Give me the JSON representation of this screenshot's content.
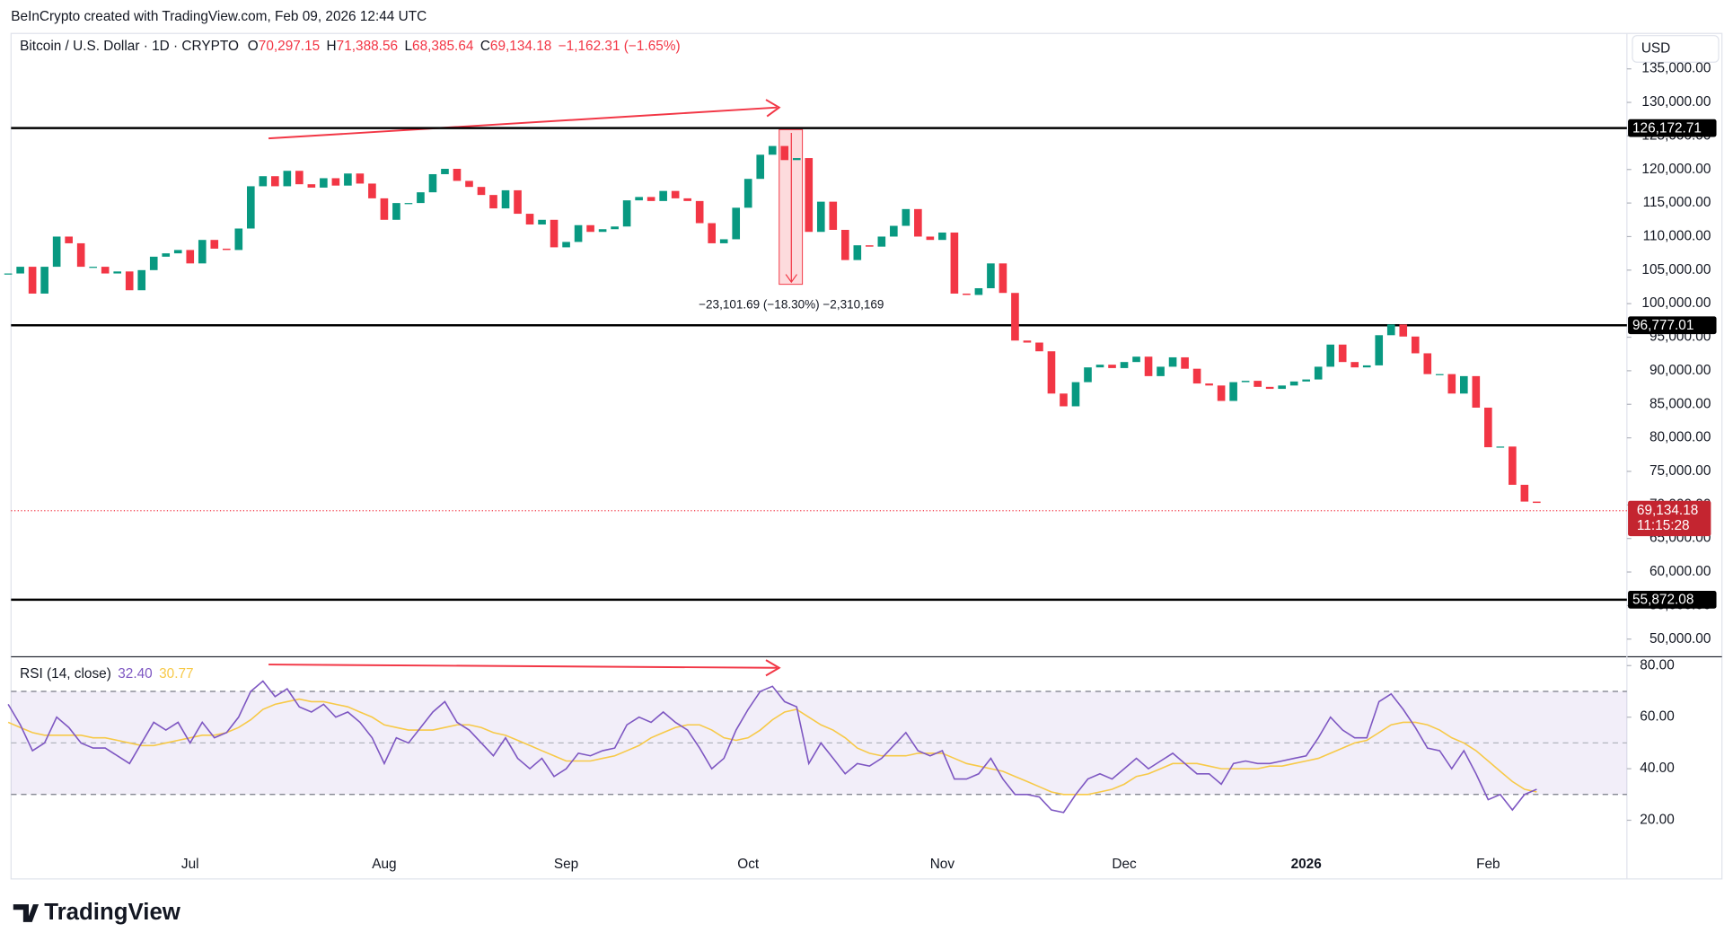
{
  "header": {
    "attribution": "BeInCrypto created with TradingView.com, Feb 09, 2026 12:44 UTC"
  },
  "footer": {
    "brand": "TradingView"
  },
  "chart_data": [
    {
      "type": "candlestick",
      "title": "Bitcoin / U.S. Dollar · 1D · CRYPTO",
      "ohlc_legend": [
        {
          "key": "O",
          "text": "70,297.15"
        },
        {
          "key": "H",
          "text": "71,388.56"
        },
        {
          "key": "L",
          "text": "68,385.64"
        },
        {
          "key": "C",
          "text": "69,134.18"
        }
      ],
      "change": "−1,162.31 (−1.65%)",
      "currency": "USD",
      "up_color": "#089981",
      "down_color": "#f23645",
      "categories": [
        null,
        null,
        null,
        null,
        null,
        null,
        null,
        null,
        null,
        null,
        null,
        null,
        null,
        null,
        null,
        "Jul",
        null,
        null,
        null,
        null,
        null,
        null,
        null,
        null,
        null,
        null,
        null,
        null,
        null,
        null,
        null,
        "Aug",
        null,
        null,
        null,
        null,
        null,
        null,
        null,
        null,
        null,
        null,
        null,
        null,
        null,
        null,
        "Sep",
        null,
        null,
        null,
        null,
        null,
        null,
        null,
        null,
        null,
        null,
        null,
        null,
        null,
        null,
        "Oct",
        null,
        null,
        null,
        null,
        null,
        null,
        null,
        null,
        null,
        null,
        null,
        null,
        null,
        null,
        null,
        "Nov",
        null,
        null,
        null,
        null,
        null,
        null,
        null,
        null,
        null,
        null,
        null,
        null,
        null,
        null,
        "Dec",
        null,
        null,
        null,
        null,
        null,
        null,
        null,
        null,
        null,
        null,
        null,
        null,
        null,
        null,
        "2026",
        null,
        null,
        null,
        null,
        null,
        null,
        null,
        null,
        null,
        null,
        null,
        null,
        null,
        null,
        "Feb",
        null,
        null,
        null,
        null
      ],
      "values": [
        104500,
        105500,
        101500,
        105500,
        110000,
        109000,
        105500,
        105500,
        104500,
        104800,
        102000,
        105000,
        107000,
        107500,
        108000,
        106000,
        109500,
        108200,
        108000,
        111200,
        117500,
        119000,
        117500,
        119800,
        117800,
        117300,
        118700,
        117600,
        119400,
        117900,
        115700,
        112500,
        115000,
        115000,
        116600,
        119300,
        120100,
        118300,
        117400,
        116200,
        114200,
        116900,
        113400,
        111800,
        112500,
        108400,
        109200,
        111700,
        110700,
        111100,
        111500,
        115400,
        115900,
        115300,
        116800,
        115700,
        115300,
        112000,
        109000,
        109600,
        114300,
        118600,
        122200,
        123500,
        121400,
        121700,
        110700,
        115200,
        111000,
        106500,
        108700,
        108500,
        110000,
        111600,
        114100,
        110000,
        109500,
        110600,
        101500,
        101300,
        102300,
        106000,
        101600,
        94500,
        94200,
        92900,
        86600,
        84700,
        88300,
        90500,
        90900,
        90400,
        91300,
        92100,
        89200,
        90600,
        92000,
        90300,
        88100,
        87800,
        85500,
        88300,
        88500,
        87600,
        87300,
        87800,
        88400,
        88700,
        90600,
        93900,
        91300,
        90500,
        90800,
        95300,
        96900,
        95100,
        92600,
        89500,
        89500,
        86600,
        89200,
        84500,
        78600,
        78700,
        73000,
        70500,
        70300
      ],
      "ylim": [
        47530,
        140280
      ],
      "yticks": [
        {
          "value": 50000,
          "label": "50,000.00"
        },
        {
          "value": 55000,
          "label": "55,000.00"
        },
        {
          "value": 60000,
          "label": "60,000.00"
        },
        {
          "value": 65000,
          "label": "65,000.00"
        },
        {
          "value": 70000,
          "label": "70,000.00"
        },
        {
          "value": 75000,
          "label": "75,000.00"
        },
        {
          "value": 80000,
          "label": "80,000.00"
        },
        {
          "value": 85000,
          "label": "85,000.00"
        },
        {
          "value": 90000,
          "label": "90,000.00"
        },
        {
          "value": 95000,
          "label": "95,000.00"
        },
        {
          "value": 100000,
          "label": "100,000.00"
        },
        {
          "value": 105000,
          "label": "105,000.00"
        },
        {
          "value": 110000,
          "label": "110,000.00"
        },
        {
          "value": 115000,
          "label": "115,000.00"
        },
        {
          "value": 120000,
          "label": "120,000.00"
        },
        {
          "value": 125000,
          "label": "125,000.00"
        },
        {
          "value": 130000,
          "label": "130,000.00"
        },
        {
          "value": 135000,
          "label": "135,000.00"
        }
      ],
      "levels": [
        {
          "value": 126172.71,
          "label": "126,172.71"
        },
        {
          "value": 96777.01,
          "label": "96,777.01"
        },
        {
          "value": 55872.08,
          "label": "55,872.08"
        }
      ],
      "last_price": {
        "value": 69134.18,
        "label": "69,134.18",
        "countdown": "11:15:28"
      },
      "measure_text": "−23,101.69 (−18.30%) −2,310,169"
    },
    {
      "type": "line",
      "title": "RSI (14, close)",
      "series": [
        {
          "legend_value": "32.40",
          "color": "#7e57c2",
          "values": [
            65,
            57,
            47,
            50,
            60,
            56,
            50,
            48,
            48,
            45,
            42,
            50,
            58,
            55,
            58,
            50,
            58,
            52,
            54,
            60,
            70,
            74,
            68,
            71,
            64,
            62,
            65,
            60,
            62,
            58,
            52,
            42,
            52,
            50,
            56,
            62,
            66,
            58,
            55,
            50,
            45,
            52,
            44,
            40,
            44,
            37,
            40,
            46,
            45,
            47,
            48,
            57,
            60,
            58,
            62,
            58,
            55,
            48,
            40,
            44,
            55,
            63,
            70,
            72,
            66,
            64,
            42,
            50,
            44,
            38,
            42,
            41,
            44,
            49,
            54,
            47,
            45,
            47,
            36,
            36,
            38,
            44,
            36,
            30,
            30,
            29,
            24,
            23,
            30,
            36,
            38,
            36,
            40,
            44,
            40,
            43,
            46,
            42,
            38,
            38,
            34,
            42,
            43,
            42,
            42,
            43,
            44,
            45,
            52,
            60,
            55,
            52,
            52,
            66,
            69,
            63,
            56,
            48,
            47,
            40,
            47,
            38,
            28,
            30,
            24,
            30,
            32
          ]
        },
        {
          "legend_value": "30.77",
          "color": "#f7c948",
          "values": [
            58,
            56,
            54,
            53,
            53,
            53,
            53,
            52,
            52,
            51,
            50,
            49,
            49,
            50,
            51,
            52,
            53,
            53,
            54,
            56,
            59,
            63,
            65,
            66,
            67,
            66,
            66,
            65,
            64,
            62,
            60,
            57,
            56,
            55,
            55,
            55,
            56,
            57,
            57,
            56,
            54,
            53,
            51,
            49,
            47,
            45,
            43,
            43,
            43,
            44,
            45,
            47,
            49,
            52,
            54,
            56,
            57,
            57,
            55,
            52,
            51,
            52,
            55,
            59,
            62,
            63,
            60,
            57,
            55,
            52,
            48,
            46,
            45,
            45,
            45,
            46,
            46,
            46,
            44,
            42,
            41,
            40,
            39,
            37,
            35,
            33,
            31,
            30,
            30,
            30,
            31,
            32,
            34,
            37,
            38,
            40,
            42,
            42,
            42,
            41,
            40,
            40,
            40,
            40,
            41,
            41,
            42,
            43,
            44,
            46,
            48,
            50,
            51,
            54,
            57,
            58,
            58,
            57,
            55,
            52,
            50,
            47,
            43,
            39,
            35,
            32,
            31
          ]
        }
      ],
      "band": [
        30,
        70
      ],
      "midline": 50,
      "ylim": [
        10.1,
        83
      ],
      "yticks": [
        {
          "value": 20,
          "label": "20.00"
        },
        {
          "value": 40,
          "label": "40.00"
        },
        {
          "value": 60,
          "label": "60.00"
        },
        {
          "value": 80,
          "label": "80.00"
        }
      ]
    }
  ]
}
